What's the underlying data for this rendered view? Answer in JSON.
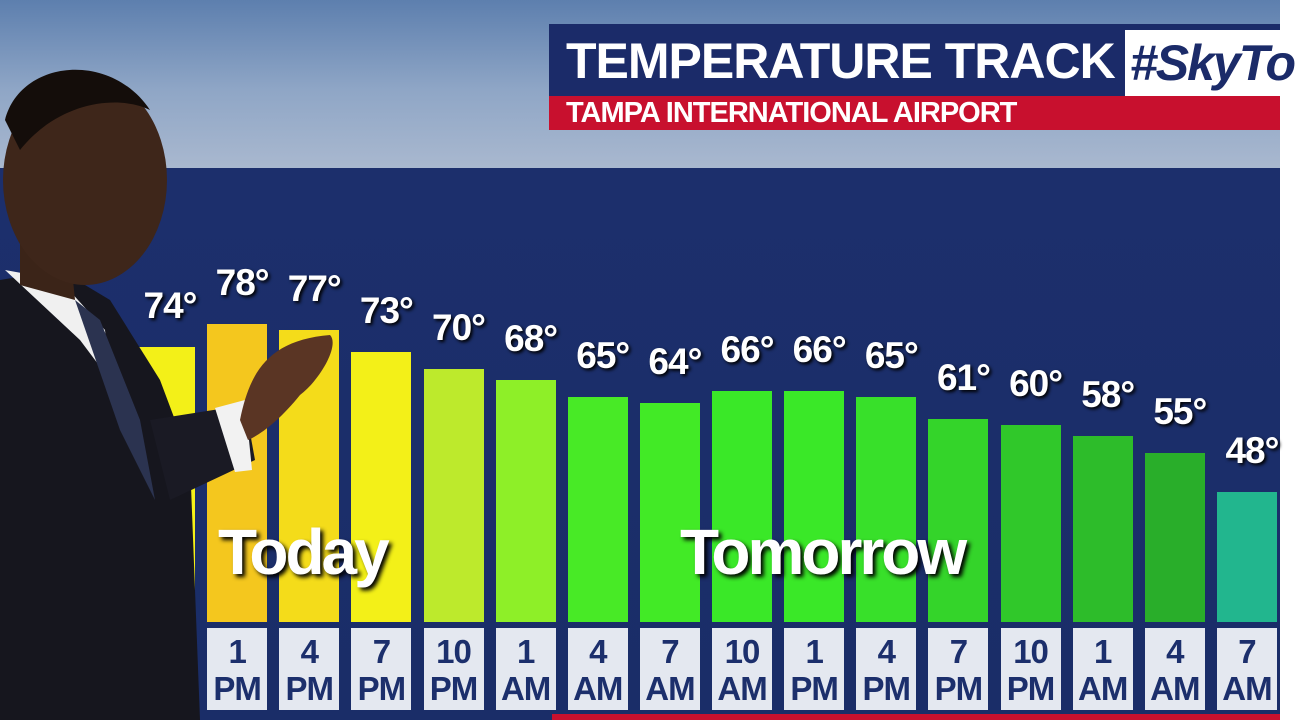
{
  "chart_data": {
    "type": "bar",
    "title": "TEMPERATURE TRACK",
    "subtitle": "TAMPA INTERNATIONAL AIRPORT",
    "hashtag": "#SkyTo",
    "annotations": [
      "Today",
      "Tomorrow"
    ],
    "categories": [
      null,
      "1 PM",
      "4 PM",
      "7 PM",
      "10 PM",
      "1 AM",
      "4 AM",
      "7 AM",
      "10 AM",
      "1 PM",
      "4 PM",
      "7 PM",
      "10 PM",
      "1 AM",
      "4 AM",
      "7 AM"
    ],
    "values": [
      74,
      78,
      77,
      73,
      70,
      68,
      65,
      64,
      66,
      66,
      65,
      61,
      60,
      58,
      55,
      48
    ],
    "value_labels": [
      "74°",
      "78°",
      "77°",
      "73°",
      "70°",
      "68°",
      "65°",
      "64°",
      "66°",
      "66°",
      "65°",
      "61°",
      "60°",
      "58°",
      "55°",
      "48°"
    ],
    "colors": [
      "#f3f018",
      "#f4c71e",
      "#f4dc1a",
      "#f3f018",
      "#bdea2c",
      "#8eef28",
      "#48ea26",
      "#42ea26",
      "#3ae828",
      "#3ae828",
      "#38e02a",
      "#34d42a",
      "#30c82a",
      "#2dbc2a",
      "#29ae2a",
      "#22b68e"
    ]
  }
}
